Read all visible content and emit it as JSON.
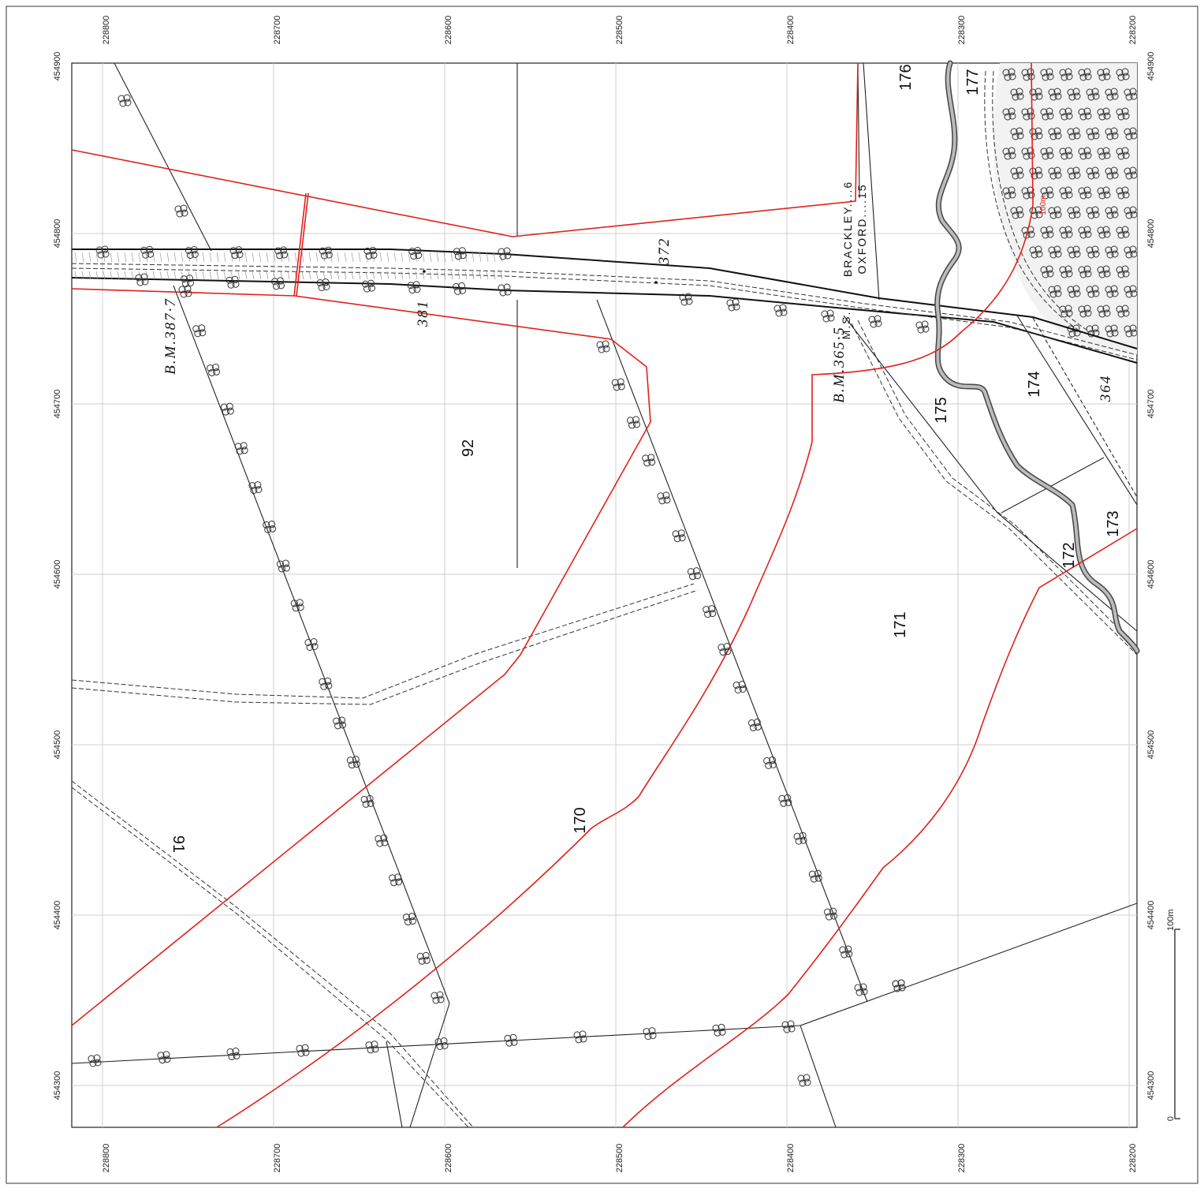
{
  "map": {
    "x_ticks": [
      "454300",
      "454400",
      "454500",
      "454600",
      "454700",
      "454800",
      "454900"
    ],
    "y_ticks": [
      "228800",
      "228700",
      "228600",
      "228500",
      "228400",
      "228300",
      "228200"
    ],
    "parcels": {
      "p91": "91",
      "p92": "92",
      "p170": "170",
      "p171": "171",
      "p172": "172",
      "p173": "173",
      "p174": "174",
      "p175": "175",
      "p176": "176",
      "p177": "177"
    },
    "spot_heights": {
      "h381": "381",
      "h372": "372",
      "h364": "364"
    },
    "benchmarks": {
      "bm1": "B.M.387·7",
      "bm2": "B.M.365·5"
    },
    "milestone": {
      "line1": "BRACKLEY....6",
      "line2": "OXFORD....15",
      "ms": "M.S."
    },
    "contour_label": "100m",
    "scale_bar": {
      "start": "0",
      "end": "100m"
    },
    "colors": {
      "boundary": "#e0211b",
      "linework": "#222222",
      "grid": "#cfcfcf"
    }
  }
}
